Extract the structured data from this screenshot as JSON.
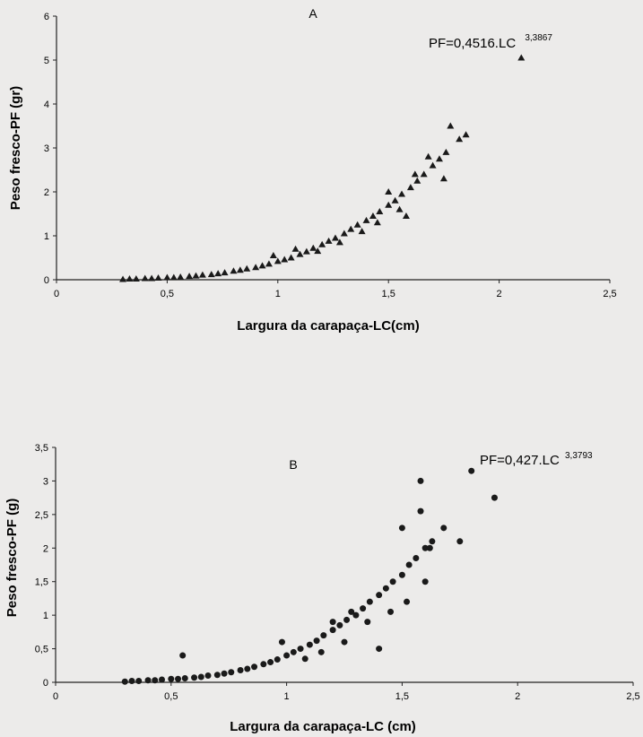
{
  "chart_data": [
    {
      "type": "scatter",
      "panel_label": "A",
      "equation": {
        "text": "PF=0,4516.LC",
        "exponent": "3,3867"
      },
      "xlabel": "Largura da carapaça-LC(cm)",
      "ylabel": "Peso fresco-PF (gr)",
      "xlim": [
        0,
        2.5
      ],
      "ylim": [
        0,
        6
      ],
      "xticks": [
        "0",
        "0,5",
        "1",
        "1,5",
        "2",
        "2,5"
      ],
      "yticks": [
        "0",
        "1",
        "2",
        "3",
        "4",
        "5",
        "6"
      ],
      "marker": "triangle",
      "grid": false,
      "points": [
        [
          0.3,
          0.01
        ],
        [
          0.33,
          0.02
        ],
        [
          0.36,
          0.02
        ],
        [
          0.4,
          0.03
        ],
        [
          0.43,
          0.03
        ],
        [
          0.46,
          0.04
        ],
        [
          0.5,
          0.05
        ],
        [
          0.53,
          0.05
        ],
        [
          0.56,
          0.06
        ],
        [
          0.6,
          0.08
        ],
        [
          0.63,
          0.09
        ],
        [
          0.66,
          0.11
        ],
        [
          0.7,
          0.12
        ],
        [
          0.73,
          0.14
        ],
        [
          0.76,
          0.16
        ],
        [
          0.8,
          0.2
        ],
        [
          0.83,
          0.22
        ],
        [
          0.86,
          0.25
        ],
        [
          0.9,
          0.28
        ],
        [
          0.93,
          0.32
        ],
        [
          0.96,
          0.36
        ],
        [
          1.0,
          0.42
        ],
        [
          1.03,
          0.46
        ],
        [
          1.06,
          0.5
        ],
        [
          1.1,
          0.58
        ],
        [
          1.13,
          0.64
        ],
        [
          1.16,
          0.72
        ],
        [
          1.2,
          0.8
        ],
        [
          1.23,
          0.88
        ],
        [
          1.26,
          0.95
        ],
        [
          1.3,
          1.05
        ],
        [
          1.33,
          1.15
        ],
        [
          1.36,
          1.25
        ],
        [
          1.4,
          1.35
        ],
        [
          1.43,
          1.45
        ],
        [
          1.46,
          1.55
        ],
        [
          1.5,
          1.7
        ],
        [
          1.53,
          1.8
        ],
        [
          1.56,
          1.95
        ],
        [
          1.6,
          2.1
        ],
        [
          1.63,
          2.25
        ],
        [
          1.66,
          2.4
        ],
        [
          1.7,
          2.6
        ],
        [
          1.73,
          2.75
        ],
        [
          1.76,
          2.9
        ],
        [
          1.5,
          2.0
        ],
        [
          1.55,
          1.6
        ],
        [
          1.58,
          1.45
        ],
        [
          1.62,
          2.4
        ],
        [
          1.68,
          2.8
        ],
        [
          1.75,
          2.3
        ],
        [
          1.78,
          3.5
        ],
        [
          1.82,
          3.2
        ],
        [
          1.85,
          3.3
        ],
        [
          2.1,
          5.05
        ],
        [
          0.98,
          0.55
        ],
        [
          1.08,
          0.7
        ],
        [
          1.18,
          0.65
        ],
        [
          1.28,
          0.85
        ],
        [
          1.38,
          1.1
        ],
        [
          1.45,
          1.3
        ]
      ]
    },
    {
      "type": "scatter",
      "panel_label": "B",
      "equation": {
        "text": "PF=0,427.LC",
        "exponent": "3,3793"
      },
      "xlabel": "Largura da carapaça-LC (cm)",
      "ylabel": "Peso fresco-PF (g)",
      "xlim": [
        0,
        2.5
      ],
      "ylim": [
        0,
        3.5
      ],
      "xticks": [
        "0",
        "0,5",
        "1",
        "1,5",
        "2",
        "2,5"
      ],
      "yticks": [
        "0",
        "0,5",
        "1",
        "1,5",
        "2",
        "2,5",
        "3",
        "3,5"
      ],
      "marker": "circle",
      "grid": false,
      "points": [
        [
          0.3,
          0.01
        ],
        [
          0.33,
          0.02
        ],
        [
          0.36,
          0.02
        ],
        [
          0.4,
          0.03
        ],
        [
          0.43,
          0.03
        ],
        [
          0.46,
          0.04
        ],
        [
          0.5,
          0.05
        ],
        [
          0.53,
          0.05
        ],
        [
          0.56,
          0.06
        ],
        [
          0.6,
          0.07
        ],
        [
          0.63,
          0.08
        ],
        [
          0.66,
          0.1
        ],
        [
          0.7,
          0.11
        ],
        [
          0.73,
          0.13
        ],
        [
          0.76,
          0.15
        ],
        [
          0.8,
          0.18
        ],
        [
          0.83,
          0.2
        ],
        [
          0.86,
          0.23
        ],
        [
          0.9,
          0.27
        ],
        [
          0.93,
          0.3
        ],
        [
          0.96,
          0.34
        ],
        [
          1.0,
          0.4
        ],
        [
          1.03,
          0.45
        ],
        [
          1.06,
          0.5
        ],
        [
          1.1,
          0.56
        ],
        [
          1.13,
          0.62
        ],
        [
          1.16,
          0.7
        ],
        [
          1.2,
          0.78
        ],
        [
          1.23,
          0.85
        ],
        [
          1.26,
          0.93
        ],
        [
          1.3,
          1.0
        ],
        [
          1.33,
          1.1
        ],
        [
          1.36,
          1.2
        ],
        [
          1.4,
          1.3
        ],
        [
          1.43,
          1.4
        ],
        [
          1.46,
          1.5
        ],
        [
          1.5,
          1.6
        ],
        [
          1.53,
          1.75
        ],
        [
          1.56,
          1.85
        ],
        [
          1.6,
          2.0
        ],
        [
          1.63,
          2.1
        ],
        [
          1.2,
          0.9
        ],
        [
          1.25,
          0.6
        ],
        [
          1.35,
          0.9
        ],
        [
          1.4,
          0.5
        ],
        [
          1.5,
          2.3
        ],
        [
          1.52,
          1.2
        ],
        [
          1.58,
          2.55
        ],
        [
          1.6,
          1.5
        ],
        [
          1.62,
          2.0
        ],
        [
          1.68,
          2.3
        ],
        [
          1.75,
          2.1
        ],
        [
          1.58,
          3.0
        ],
        [
          1.8,
          3.15
        ],
        [
          1.9,
          2.75
        ],
        [
          0.55,
          0.4
        ],
        [
          0.98,
          0.6
        ],
        [
          1.08,
          0.35
        ],
        [
          1.15,
          0.45
        ],
        [
          1.28,
          1.05
        ],
        [
          1.45,
          1.05
        ]
      ]
    }
  ]
}
